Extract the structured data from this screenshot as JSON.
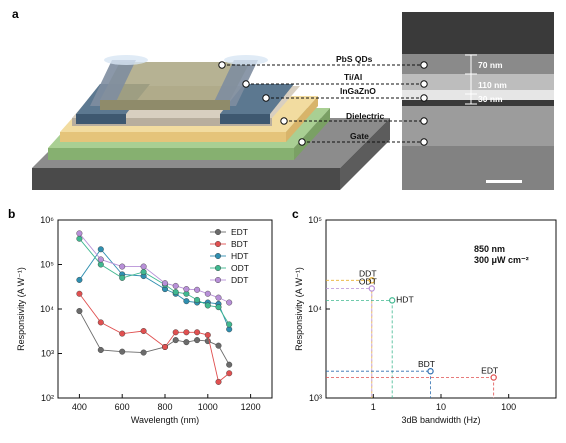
{
  "panels": {
    "a": {
      "label": "a",
      "layers": [
        "PbS QDs",
        "Ti/Al",
        "InGaZnO",
        "Dielectric",
        "Gate"
      ],
      "sem_thicknesses": [
        "70 nm",
        "110 nm",
        "30 nm"
      ]
    },
    "b": {
      "label": "b"
    },
    "c": {
      "label": "c"
    }
  },
  "chart_data": [
    {
      "type": "line",
      "panel": "b",
      "xlabel": "Wavelength (nm)",
      "ylabel": "Responsivity (A W⁻¹)",
      "xlim": [
        300,
        1300
      ],
      "xticks": [
        400,
        600,
        800,
        1000,
        1200
      ],
      "ylim": [
        100,
        1000000
      ],
      "yscale": "log",
      "yticks": [
        "10²",
        "10³",
        "10⁴",
        "10⁵",
        "10⁶"
      ],
      "legend": "top-right",
      "series": [
        {
          "name": "EDT",
          "color": "#6b6b6b",
          "x": [
            400,
            500,
            600,
            700,
            800,
            850,
            900,
            950,
            1000,
            1050,
            1100
          ],
          "y": [
            9000,
            1200,
            1100,
            1050,
            1400,
            2000,
            1800,
            2000,
            1900,
            1500,
            560
          ]
        },
        {
          "name": "BDT",
          "color": "#e05050",
          "x": [
            400,
            500,
            600,
            700,
            800,
            850,
            900,
            950,
            1000,
            1050,
            1100
          ],
          "y": [
            22000,
            5000,
            2800,
            3200,
            1400,
            3000,
            3000,
            3000,
            2600,
            230,
            360
          ]
        },
        {
          "name": "HDT",
          "color": "#2f8fb0",
          "x": [
            400,
            500,
            600,
            700,
            800,
            850,
            900,
            950,
            1000,
            1050,
            1100
          ],
          "y": [
            45000,
            220000,
            60000,
            55000,
            28000,
            22000,
            15000,
            14000,
            14000,
            13000,
            3500
          ]
        },
        {
          "name": "ODT",
          "color": "#40b890",
          "x": [
            400,
            500,
            600,
            700,
            800,
            850,
            900,
            950,
            1000,
            1050,
            1100
          ],
          "y": [
            380000,
            100000,
            50000,
            68000,
            35000,
            24000,
            22000,
            16000,
            12000,
            11000,
            4500
          ]
        },
        {
          "name": "DDT",
          "color": "#b890d8",
          "x": [
            400,
            500,
            600,
            700,
            800,
            850,
            900,
            950,
            1000,
            1050,
            1100
          ],
          "y": [
            500000,
            130000,
            90000,
            90000,
            38000,
            33000,
            28000,
            27000,
            22000,
            18000,
            14000
          ]
        }
      ]
    },
    {
      "type": "scatter",
      "panel": "c",
      "xlabel": "3dB bandwidth (Hz)",
      "ylabel": "Responsivity (A W⁻¹)",
      "xscale": "log",
      "yscale": "log",
      "xlim": [
        0.2,
        500
      ],
      "xticks": [
        "1",
        "10",
        "100"
      ],
      "ylim": [
        1000,
        100000
      ],
      "yticks": [
        "10³",
        "10⁴",
        "10⁵"
      ],
      "annotation": [
        "850 nm",
        "300 μW cm⁻²"
      ],
      "points": [
        {
          "label": "DDT",
          "x": 0.95,
          "y": 21000,
          "color": "#e8b030"
        },
        {
          "label": "ODT",
          "x": 0.95,
          "y": 17000,
          "color": "#b890d8"
        },
        {
          "label": "HDT",
          "x": 1.9,
          "y": 12500,
          "color": "#40b890"
        },
        {
          "label": "BDT",
          "x": 7,
          "y": 2000,
          "color": "#2f6fb0"
        },
        {
          "label": "EDT",
          "x": 60,
          "y": 1700,
          "color": "#e05050"
        }
      ]
    }
  ]
}
